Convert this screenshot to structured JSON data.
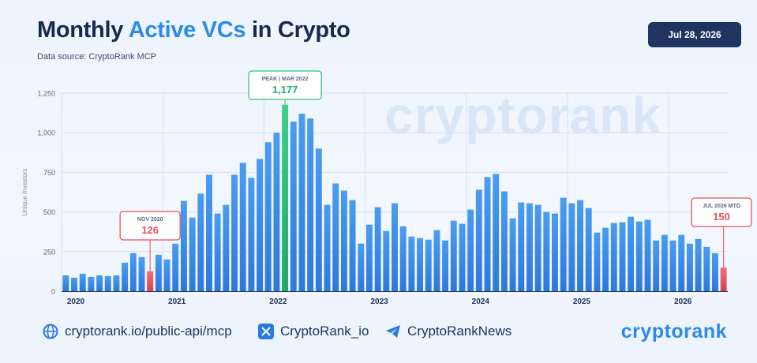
{
  "header": {
    "title_pre": "Monthly ",
    "title_accent": "Active VCs",
    "title_post": " in Crypto",
    "subtitle": "Data source: CryptoRank MCP",
    "date": "Jul 28, 2026"
  },
  "watermark": "cryptorank",
  "footer": {
    "website": "cryptorank.io/public-api/mcp",
    "x_handle": "CryptoRank_io",
    "telegram": "CryptoRankNews",
    "brand": "cryptorank"
  },
  "colors": {
    "bar": "#3e8fe9",
    "peak": "#2fc27a",
    "low": "#e6505f",
    "accent": "#2a8bec",
    "dark": "#1f3460"
  },
  "chart_data": {
    "type": "bar",
    "ylabel": "Unique Investors",
    "ylim": [
      0,
      1250
    ],
    "yticks": [
      "1,250",
      "1,000",
      "750",
      "500",
      "250",
      "0"
    ],
    "ytick_values": [
      1250,
      1000,
      750,
      500,
      250,
      0
    ],
    "year_labels": [
      "2020",
      "2021",
      "2022",
      "2023",
      "2024",
      "2025",
      "2026"
    ],
    "grid": true,
    "values": [
      100,
      85,
      110,
      90,
      100,
      95,
      100,
      180,
      240,
      215,
      126,
      230,
      200,
      300,
      570,
      465,
      615,
      735,
      490,
      545,
      735,
      810,
      715,
      835,
      940,
      1000,
      1177,
      1070,
      1120,
      1090,
      900,
      545,
      680,
      635,
      575,
      300,
      420,
      530,
      380,
      555,
      410,
      345,
      335,
      325,
      385,
      320,
      445,
      425,
      515,
      640,
      720,
      740,
      630,
      460,
      560,
      555,
      545,
      500,
      490,
      590,
      555,
      575,
      525,
      370,
      400,
      430,
      435,
      470,
      440,
      450,
      320,
      355,
      320,
      355,
      300,
      330,
      280,
      240,
      150
    ],
    "annotations": [
      {
        "label": "PEAK | MAR 2022",
        "value": "1,177",
        "index": 26,
        "kind": "peak"
      },
      {
        "label": "NOV 2020",
        "value": "126",
        "index": 10,
        "kind": "low"
      },
      {
        "label": "JUL 2026 MTD",
        "value": "150",
        "index": 78,
        "kind": "low"
      }
    ]
  }
}
